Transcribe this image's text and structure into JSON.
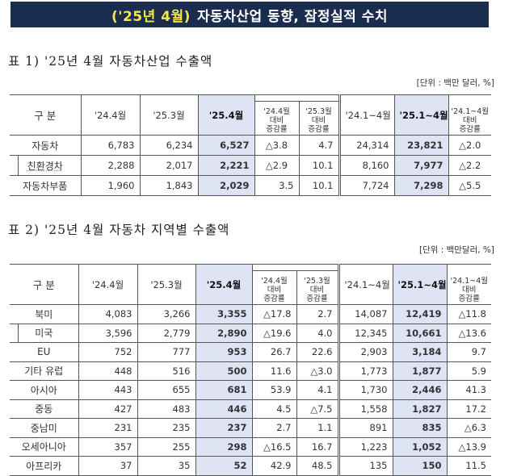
{
  "header": {
    "title_highlight": "('25년 4월)",
    "title_rest": "자동차산업 동향, 잠정실적 수치",
    "colors": {
      "bar_bg": "#1b2d4f",
      "highlight": "#f5e64a",
      "text": "#ffffff",
      "shade": "#dfe4f5"
    }
  },
  "table1": {
    "title": "표 1) '25년 4월 자동차산업 수출액",
    "unit": "[단위 : 백만 달러, %]",
    "headers": {
      "category": "구 분",
      "c1": "'24.4월",
      "c2": "'25.3월",
      "c3": "'25.4월",
      "c4": [
        "'24.4월",
        "대비",
        "증감률"
      ],
      "c5": [
        "'25.3월",
        "대비",
        "증감률"
      ],
      "c6": "'24.1~4월",
      "c7": "'25.1~4월",
      "c8": [
        "'24.1~4월",
        "대비",
        "증감률"
      ]
    },
    "rows": [
      {
        "label": "자동차",
        "v": [
          "6,783",
          "6,234",
          "6,527",
          "△3.8",
          "4.7",
          "24,314",
          "23,821",
          "△2.0"
        ]
      },
      {
        "label": "친환경차",
        "v": [
          "2,288",
          "2,017",
          "2,221",
          "△2.9",
          "10.1",
          "8,160",
          "7,977",
          "△2.2"
        ]
      },
      {
        "label": "자동차부품",
        "v": [
          "1,960",
          "1,843",
          "2,029",
          "3.5",
          "10.1",
          "7,724",
          "7,298",
          "△5.5"
        ]
      }
    ]
  },
  "table2": {
    "title": "표 2) '25년 4월 자동차 지역별 수출액",
    "unit": "[단위 : 백만달러, %]",
    "headers": {
      "category": "구 분",
      "c1": "'24.4월",
      "c2": "'25.3월",
      "c3": "'25.4월",
      "c4": [
        "'24.4월",
        "대비",
        "증감률"
      ],
      "c5": [
        "'25.3월",
        "대비",
        "증감률"
      ],
      "c6": "'24.1~4월",
      "c7": "'25.1~4월",
      "c8": [
        "'24.1~4월",
        "대비",
        "증감률"
      ]
    },
    "rows": [
      {
        "label": "북미",
        "v": [
          "4,083",
          "3,266",
          "3,355",
          "△17.8",
          "2.7",
          "14,087",
          "12,419",
          "△11.8"
        ]
      },
      {
        "label": "미국",
        "v": [
          "3,596",
          "2,779",
          "2,890",
          "△19.6",
          "4.0",
          "12,345",
          "10,661",
          "△13.6"
        ]
      },
      {
        "label": "EU",
        "v": [
          "752",
          "777",
          "953",
          "26.7",
          "22.6",
          "2,903",
          "3,184",
          "9.7"
        ]
      },
      {
        "label": "기타 유럽",
        "v": [
          "448",
          "516",
          "500",
          "11.6",
          "△3.0",
          "1,773",
          "1,877",
          "5.9"
        ]
      },
      {
        "label": "아시아",
        "v": [
          "443",
          "655",
          "681",
          "53.9",
          "4.1",
          "1,730",
          "2,446",
          "41.3"
        ]
      },
      {
        "label": "중동",
        "v": [
          "427",
          "483",
          "446",
          "4.5",
          "△7.5",
          "1,558",
          "1,827",
          "17.2"
        ]
      },
      {
        "label": "중남미",
        "v": [
          "231",
          "235",
          "237",
          "2.7",
          "1.1",
          "891",
          "835",
          "△6.3"
        ]
      },
      {
        "label": "오세아니아",
        "v": [
          "357",
          "255",
          "298",
          "△16.5",
          "16.7",
          "1,223",
          "1,052",
          "△13.9"
        ]
      },
      {
        "label": "아프리카",
        "v": [
          "37",
          "35",
          "52",
          "42.9",
          "48.5",
          "135",
          "150",
          "11.5"
        ]
      }
    ]
  }
}
